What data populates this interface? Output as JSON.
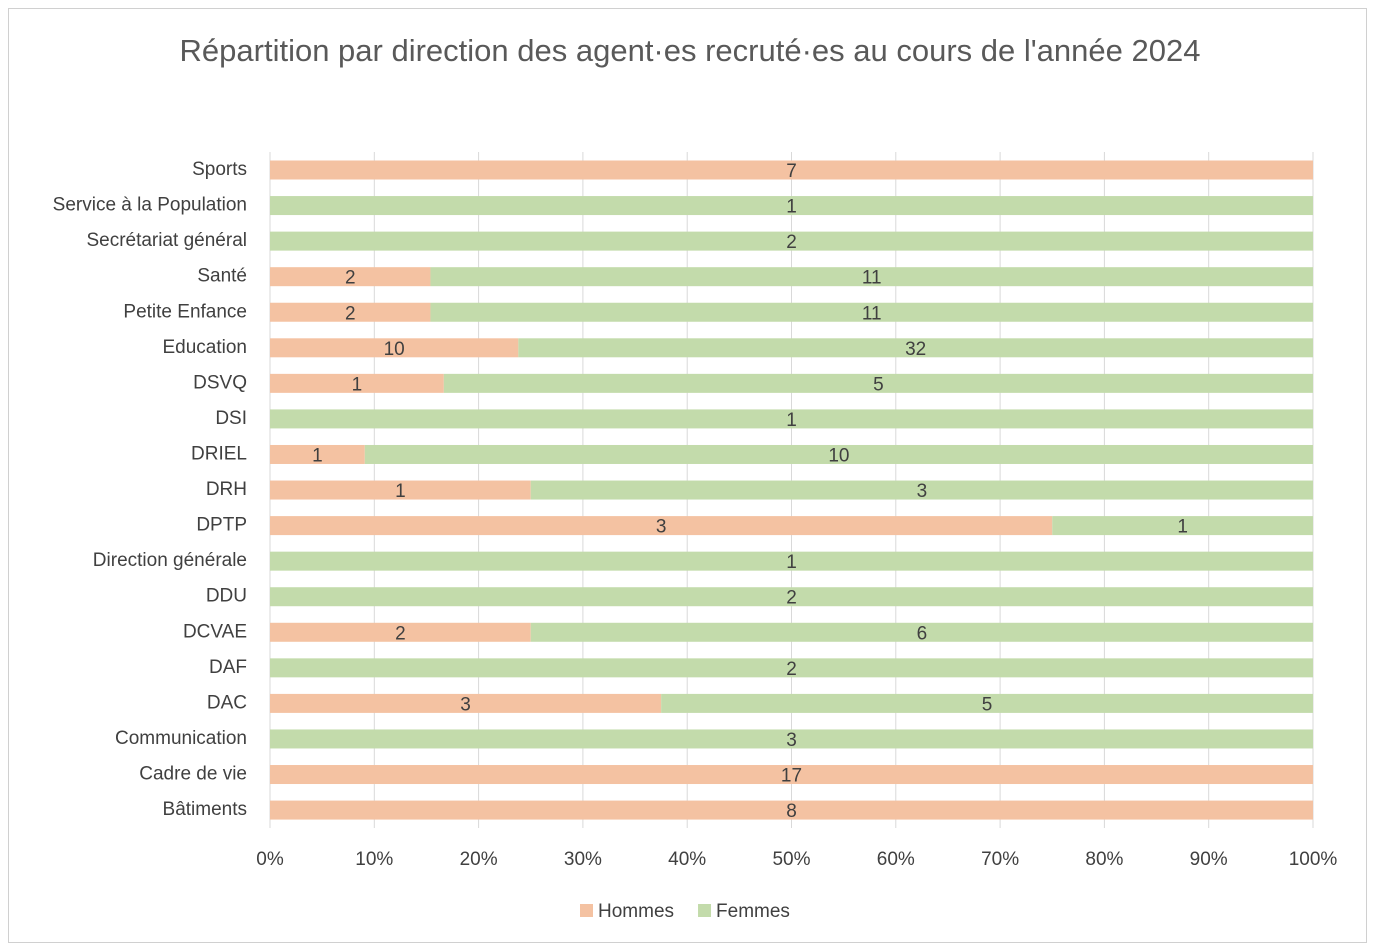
{
  "chart_data": {
    "type": "bar",
    "orientation": "horizontal",
    "stacking": "percent",
    "title": "Répartition par direction des agent·es recruté·es au cours de l'année 2024",
    "categories": [
      "Sports",
      "Service à la Population",
      "Secrétariat général",
      "Santé",
      "Petite Enfance",
      "Education",
      "DSVQ",
      "DSI",
      "DRIEL",
      "DRH",
      "DPTP",
      "Direction générale",
      "DDU",
      "DCVAE",
      "DAF",
      "DAC",
      "Communication",
      "Cadre de vie",
      "Bâtiments"
    ],
    "series": [
      {
        "name": "Hommes",
        "color": "#f4c2a2",
        "values": [
          7,
          null,
          null,
          2,
          2,
          10,
          1,
          null,
          1,
          1,
          3,
          null,
          null,
          2,
          null,
          3,
          null,
          17,
          8
        ]
      },
      {
        "name": "Femmes",
        "color": "#c3dbab",
        "values": [
          null,
          1,
          2,
          11,
          11,
          32,
          5,
          1,
          10,
          3,
          1,
          1,
          2,
          6,
          2,
          5,
          3,
          null,
          null
        ]
      }
    ],
    "xlim": [
      0,
      100
    ],
    "xticks": [
      {
        "value": 0,
        "label": "0%"
      },
      {
        "value": 10,
        "label": "10%"
      },
      {
        "value": 20,
        "label": "20%"
      },
      {
        "value": 30,
        "label": "30%"
      },
      {
        "value": 40,
        "label": "40%"
      },
      {
        "value": 50,
        "label": "50%"
      },
      {
        "value": 60,
        "label": "60%"
      },
      {
        "value": 70,
        "label": "70%"
      },
      {
        "value": 80,
        "label": "80%"
      },
      {
        "value": 90,
        "label": "90%"
      },
      {
        "value": 100,
        "label": "100%"
      }
    ],
    "grid": true,
    "legend": "bottom"
  }
}
